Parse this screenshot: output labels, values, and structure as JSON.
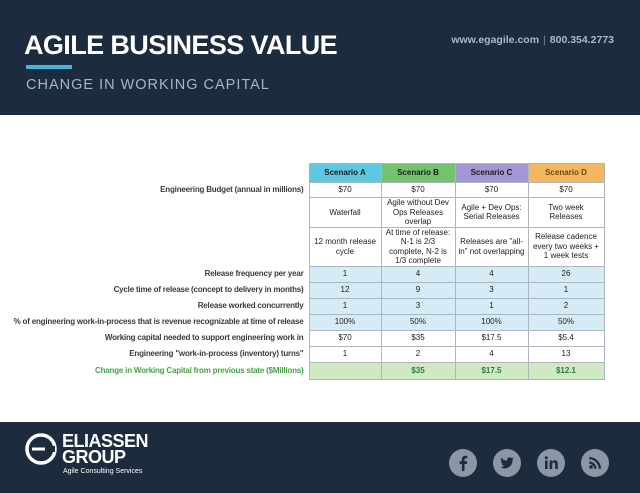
{
  "header": {
    "title": "AGILE BUSINESS VALUE",
    "subtitle": "CHANGE IN WORKING CAPITAL",
    "website": "www.egagile.com",
    "separator": "|",
    "phone": "800.354.2773"
  },
  "table": {
    "scenarios": [
      "Scenario A",
      "Scenario B",
      "Scenario C",
      "Scenario D"
    ],
    "rows": [
      {
        "label": "Engineering Budget (annual in millions)",
        "values": [
          "$70",
          "$70",
          "$70",
          "$70"
        ]
      },
      {
        "label": "",
        "values": [
          "Waterfall",
          "Agile without Dev Ops Releases overlap",
          "Agile + Dev Ops: Serial Releases",
          "Two week Releases"
        ]
      },
      {
        "label": "",
        "values": [
          "12 month release cycle",
          "At time of release: N-1 is 2/3 complete, N-2 is 1/3 complete",
          "Releases are \"all-in\" not overlapping",
          "Release cadence every two weeks + 1 week tests"
        ]
      },
      {
        "label": "Release frequency per year",
        "values": [
          "1",
          "4",
          "4",
          "26"
        ]
      },
      {
        "label": "Cycle time of release (concept to delivery in months)",
        "values": [
          "12",
          "9",
          "3",
          "1"
        ]
      },
      {
        "label": "Release worked concurrently",
        "values": [
          "1",
          "3",
          "1",
          "2"
        ]
      },
      {
        "label": "% of engineering work-in-process that is revenue recognizable at time of release",
        "values": [
          "100%",
          "50%",
          "100%",
          "50%"
        ]
      },
      {
        "label": "Working capital needed to support engineering work in",
        "values": [
          "$70",
          "$35",
          "$17.5",
          "$5.4"
        ]
      },
      {
        "label": "Engineering \"work-in-process (inventory) turns\"",
        "values": [
          "1",
          "2",
          "4",
          "13"
        ]
      },
      {
        "label": "Change in Working Capital from previous state ($Millions)",
        "values": [
          "",
          "$35",
          "$17.5",
          "$12.1"
        ]
      }
    ]
  },
  "footer": {
    "logo_line1": "ELIASSEN",
    "logo_line2": "GROUP",
    "logo_tagline": "Agile Consulting Services",
    "social_icons": [
      "facebook-icon",
      "twitter-icon",
      "linkedin-icon",
      "rss-icon"
    ]
  },
  "colors": {
    "navy": "#1d2b3e",
    "accent_blue": "#4ab2d8",
    "scenario_a": "#5ec7e3",
    "scenario_b": "#73c26f",
    "scenario_c": "#a596d3",
    "scenario_d": "#f5b660",
    "highlight_green": "#46a347"
  }
}
